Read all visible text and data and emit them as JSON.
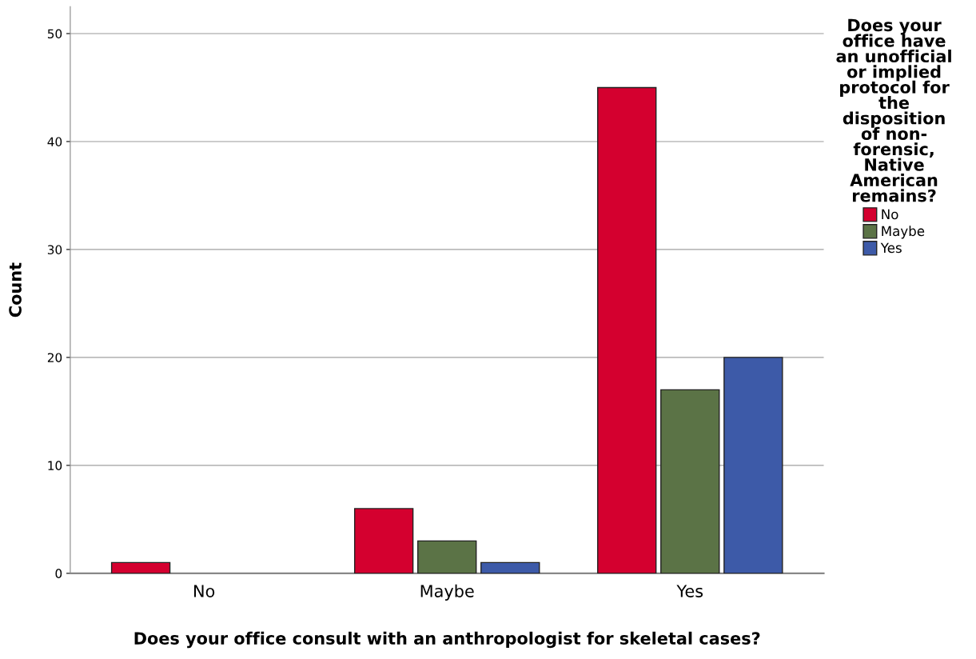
{
  "chart_data": {
    "type": "bar",
    "xlabel": "Does your office consult with an anthropologist for skeletal cases?",
    "ylabel": "Count",
    "legend_title": "Does your\noffice have\nan unofficial\nor implied\nprotocol for\nthe\ndisposition\nof non-\nforensic,\nNative\nAmerican\nremains?",
    "categories": [
      "No",
      "Maybe",
      "Yes"
    ],
    "series": [
      {
        "name": "No",
        "color": "#d4002f",
        "values": [
          1,
          6,
          45
        ]
      },
      {
        "name": "Maybe",
        "color": "#5b7346",
        "values": [
          0,
          3,
          17
        ]
      },
      {
        "name": "Yes",
        "color": "#3d5aa8",
        "values": [
          0,
          1,
          20
        ]
      }
    ],
    "ylim": [
      0,
      52.5
    ],
    "yticks": [
      0,
      10,
      20,
      30,
      40,
      50
    ],
    "grid": "y",
    "legend": "top right"
  }
}
